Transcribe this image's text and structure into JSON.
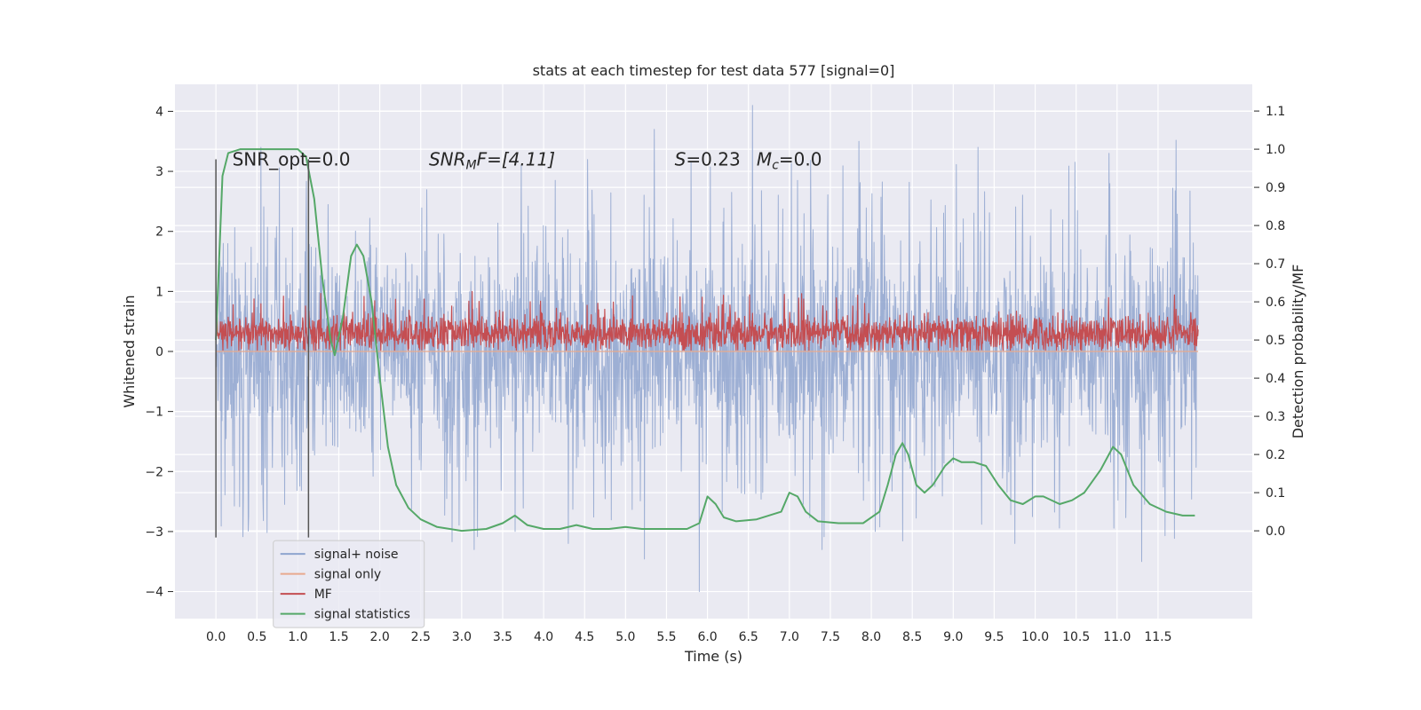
{
  "chart_data": {
    "type": "line",
    "title": "stats at each timestep for test data 577 [signal=0]",
    "xlabel": "Time (s)",
    "ylabel_left": "Whitened strain",
    "ylabel_right": "Detection probability/MF",
    "xlim": [
      -0.5,
      12.65
    ],
    "ylim_left": [
      -4.45,
      4.45
    ],
    "ylim_right": [
      -0.23,
      1.17
    ],
    "x_ticks": [
      0.0,
      0.5,
      1.0,
      1.5,
      2.0,
      2.5,
      3.0,
      3.5,
      4.0,
      4.5,
      5.0,
      5.5,
      6.0,
      6.5,
      7.0,
      7.5,
      8.0,
      8.5,
      9.0,
      9.5,
      10.0,
      10.5,
      11.0,
      11.5
    ],
    "x_tick_labels": [
      "0.0",
      "0.5",
      "1.0",
      "1.5",
      "2.0",
      "2.5",
      "3.0",
      "3.5",
      "4.0",
      "4.5",
      "5.0",
      "5.5",
      "6.0",
      "6.5",
      "7.0",
      "7.5",
      "8.0",
      "8.5",
      "9.0",
      "9.5",
      "10.0",
      "10.5",
      "11.0",
      "11.5"
    ],
    "y_left_ticks": [
      4,
      3,
      2,
      1,
      0,
      -1,
      -2,
      -3,
      -4
    ],
    "y_left_tick_labels": [
      "4",
      "3",
      "2",
      "1",
      "0",
      "−1",
      "−2",
      "−3",
      "−4"
    ],
    "y_right_ticks": [
      1.1,
      1.0,
      0.9,
      0.8,
      0.7,
      0.6,
      0.5,
      0.4,
      0.3,
      0.2,
      0.1,
      0.0
    ],
    "y_right_tick_labels": [
      "1.1",
      "1.0",
      "0.9",
      "0.8",
      "0.7",
      "0.6",
      "0.5",
      "0.4",
      "0.3",
      "0.2",
      "0.1",
      "0.0"
    ],
    "grid": true,
    "legend_position": "lower-left",
    "vlines": [
      0.0,
      1.13
    ],
    "annotations": {
      "snr_opt": "SNR_opt=0.0",
      "snr_mf_label": "SNR",
      "snr_mf_sub": "M",
      "snr_mf_rest": "F=[4.11]",
      "s_label": "S",
      "s_value": "=0.23",
      "mc_label": "M",
      "mc_sub": "c",
      "mc_value": "=0.0"
    },
    "series": [
      {
        "name": "signal+ noise",
        "color": "#8fa5cf",
        "axis": "left",
        "style": "noise",
        "x_range": [
          0.0,
          11.99
        ],
        "std": 0.92,
        "spikes": [
          [
            6.55,
            4.1
          ],
          [
            5.35,
            3.7
          ],
          [
            7.85,
            3.5
          ],
          [
            9.3,
            3.4
          ],
          [
            10.9,
            3.3
          ],
          [
            0.55,
            3.4
          ],
          [
            3.65,
            -3.0
          ],
          [
            11.3,
            -3.5
          ],
          [
            5.9,
            -4.0
          ],
          [
            8.05,
            -3.0
          ],
          [
            3.15,
            -3.3
          ],
          [
            4.3,
            -3.2
          ],
          [
            9.75,
            -3.2
          ],
          [
            7.4,
            -3.3
          ]
        ]
      },
      {
        "name": "signal only",
        "color": "#e8a98e",
        "axis": "left",
        "style": "line",
        "x": [
          0.0,
          11.99
        ],
        "y": [
          0.0,
          0.0
        ]
      },
      {
        "name": "MF",
        "color": "#c44e52",
        "axis": "left",
        "style": "noise",
        "x_range": [
          0.0,
          11.99
        ],
        "mean": 0.3,
        "std": 0.15,
        "min": 0.02,
        "max": 1.0
      },
      {
        "name": "signal statistics",
        "color": "#55a868",
        "axis": "right",
        "style": "line",
        "x": [
          0.0,
          0.08,
          0.15,
          0.3,
          0.5,
          0.7,
          0.9,
          1.0,
          1.1,
          1.2,
          1.3,
          1.4,
          1.45,
          1.55,
          1.65,
          1.72,
          1.8,
          1.9,
          2.0,
          2.1,
          2.2,
          2.35,
          2.5,
          2.7,
          3.0,
          3.3,
          3.5,
          3.65,
          3.8,
          4.0,
          4.2,
          4.4,
          4.6,
          4.8,
          5.0,
          5.2,
          5.5,
          5.75,
          5.9,
          6.0,
          6.1,
          6.2,
          6.35,
          6.6,
          6.9,
          7.0,
          7.1,
          7.2,
          7.35,
          7.6,
          7.9,
          8.1,
          8.2,
          8.3,
          8.38,
          8.45,
          8.55,
          8.65,
          8.75,
          8.9,
          9.0,
          9.1,
          9.25,
          9.4,
          9.55,
          9.7,
          9.85,
          10.0,
          10.1,
          10.3,
          10.45,
          10.6,
          10.8,
          10.95,
          11.05,
          11.2,
          11.4,
          11.6,
          11.8,
          11.95
        ],
        "y": [
          0.5,
          0.93,
          0.99,
          1.0,
          1.0,
          1.0,
          1.0,
          1.0,
          0.98,
          0.87,
          0.66,
          0.5,
          0.46,
          0.56,
          0.72,
          0.75,
          0.72,
          0.6,
          0.4,
          0.22,
          0.12,
          0.06,
          0.03,
          0.01,
          0.0,
          0.005,
          0.02,
          0.04,
          0.015,
          0.005,
          0.005,
          0.015,
          0.005,
          0.005,
          0.01,
          0.005,
          0.005,
          0.005,
          0.02,
          0.09,
          0.07,
          0.035,
          0.025,
          0.03,
          0.05,
          0.1,
          0.09,
          0.05,
          0.025,
          0.02,
          0.02,
          0.05,
          0.12,
          0.2,
          0.23,
          0.2,
          0.12,
          0.1,
          0.12,
          0.17,
          0.19,
          0.18,
          0.18,
          0.17,
          0.12,
          0.08,
          0.07,
          0.09,
          0.09,
          0.07,
          0.08,
          0.1,
          0.16,
          0.22,
          0.2,
          0.12,
          0.07,
          0.05,
          0.04,
          0.04
        ]
      }
    ]
  }
}
